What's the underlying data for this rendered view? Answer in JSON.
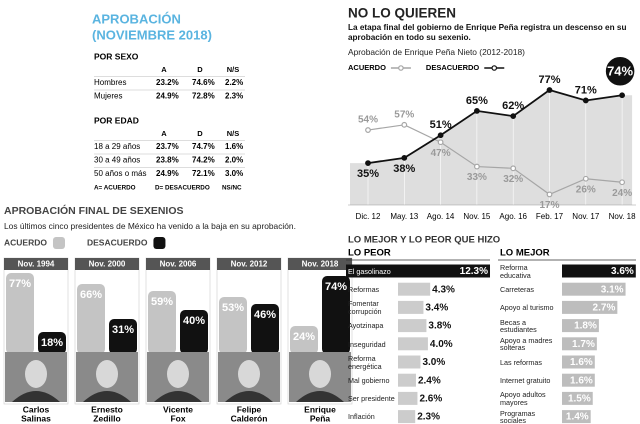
{
  "approval": {
    "title": [
      "APROBACIÓN",
      "(NOVIEMBRE 2018)"
    ],
    "sections": [
      {
        "heading": "POR SEXO",
        "columns": [
          "A",
          "D",
          "N/S"
        ],
        "rows": [
          {
            "label": "Hombres",
            "values": [
              "23.2%",
              "74.6%",
              "2.2%"
            ]
          },
          {
            "label": "Mujeres",
            "values": [
              "24.9%",
              "72.8%",
              "2.3%"
            ]
          }
        ]
      },
      {
        "heading": "POR EDAD",
        "columns": [
          "A",
          "D",
          "N/S"
        ],
        "rows": [
          {
            "label": "18 a 29 años",
            "values": [
              "23.7%",
              "74.7%",
              "1.6%"
            ]
          },
          {
            "label": "30 a 49 años",
            "values": [
              "23.8%",
              "74.2%",
              "2.0%"
            ]
          },
          {
            "label": "50 años o más",
            "values": [
              "24.9%",
              "72.1%",
              "3.0%"
            ]
          }
        ]
      }
    ],
    "legend": [
      "A= ACUERDO",
      "D= DESACUERDO",
      "NS/NC"
    ]
  },
  "chart_data": [
    {
      "type": "line",
      "title": "NO LO QUIEREN",
      "subtitle": "La etapa final del gobierno de Enrique Peña registra un descenso en su aprobación en todo su sexenio.",
      "caption": "Aprobación de Enrique Peña Nieto (2012-2018)",
      "categories": [
        "Dic. 12",
        "May. 13",
        "Ago. 14",
        "Nov. 15",
        "Ago. 16",
        "Feb. 17",
        "Nov. 17",
        "Nov. 18"
      ],
      "series": [
        {
          "name": "ACUERDO",
          "color": "#a6a6a6",
          "values": [
            54,
            57,
            47,
            33,
            32,
            17,
            26,
            24
          ],
          "value_labels": [
            "54%",
            "57%",
            "47%",
            "33%",
            "32%",
            "17%",
            "26%",
            "24%"
          ]
        },
        {
          "name": "DESACUERDO",
          "color": "#111111",
          "values": [
            35,
            38,
            51,
            65,
            62,
            77,
            71,
            74
          ],
          "value_labels": [
            "35%",
            "38%",
            "51%",
            "65%",
            "62%",
            "77%",
            "71%",
            "74%"
          ]
        }
      ]
    },
    {
      "type": "bar",
      "title": "APROBACIÓN FINAL DE SEXENIOS",
      "subtitle": "Los últimos cinco presidentes de México ha venido a la baja en su aprobación.",
      "categories": [
        "Nov. 1994",
        "Nov. 2000",
        "Nov. 2006",
        "Nov. 2012",
        "Nov. 2018"
      ],
      "presidents": [
        [
          "Carlos",
          "Salinas"
        ],
        [
          "Ernesto",
          "Zedillo"
        ],
        [
          "Vicente",
          "Fox"
        ],
        [
          "Felipe",
          "Calderón"
        ],
        [
          "Enrique",
          "Peña"
        ]
      ],
      "series": [
        {
          "name": "ACUERDO",
          "color": "#c4c4c4",
          "values": [
            77,
            66,
            59,
            53,
            24
          ],
          "value_labels": [
            "77%",
            "66%",
            "59%",
            "53%",
            "24%"
          ]
        },
        {
          "name": "DESACUERDO",
          "color": "#111111",
          "values": [
            18,
            31,
            40,
            46,
            74
          ],
          "value_labels": [
            "18%",
            "31%",
            "40%",
            "46%",
            "74%"
          ]
        }
      ]
    },
    {
      "type": "hbar",
      "section_title": "LO MEJOR Y LO PEOR QUE HIZO",
      "title": "LO PEOR",
      "categories": [
        "El gasolinazo",
        "Reformas",
        "Fomentar corrupción",
        "Ayotzinapa",
        "Inseguridad",
        "Reforma energética",
        "Mal gobierno",
        "Ser presidente",
        "Inflación"
      ],
      "values": [
        12.3,
        4.3,
        3.4,
        3.8,
        4.0,
        3.0,
        2.4,
        2.6,
        2.3
      ],
      "value_labels": [
        "12.3%",
        "4.3%",
        "3.4%",
        "3.8%",
        "4.0%",
        "3.0%",
        "2.4%",
        "2.6%",
        "2.3%"
      ],
      "colors": [
        "#111111",
        "#cccccc",
        "#cccccc",
        "#cccccc",
        "#cccccc",
        "#cccccc",
        "#cccccc",
        "#cccccc",
        "#cccccc"
      ]
    },
    {
      "type": "hbar",
      "title": "LO MEJOR",
      "categories": [
        "Reforma educativa",
        "Carreteras",
        "Apoyo al turismo",
        "Becas a estudiantes",
        "Apoyo a madres solteras",
        "Las reformas",
        "Internet gratuito",
        "Apoyo adultos mayores",
        "Programas sociales"
      ],
      "values": [
        3.6,
        3.1,
        2.7,
        1.8,
        1.7,
        1.6,
        1.6,
        1.5,
        1.4
      ],
      "value_labels": [
        "3.6%",
        "3.1%",
        "2.7%",
        "1.8%",
        "1.7%",
        "1.6%",
        "1.6%",
        "1.5%",
        "1.4%"
      ],
      "colors": [
        "#111111",
        "#bdbdbd",
        "#bdbdbd",
        "#bdbdbd",
        "#bdbdbd",
        "#bdbdbd",
        "#bdbdbd",
        "#bdbdbd",
        "#bdbdbd"
      ]
    }
  ]
}
